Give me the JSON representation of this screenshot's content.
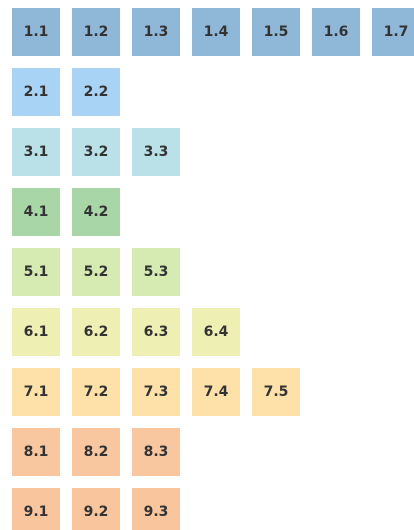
{
  "rows": [
    {
      "color": "#8fb7d8",
      "tiles": [
        "1.1",
        "1.2",
        "1.3",
        "1.4",
        "1.5",
        "1.6",
        "1.7"
      ]
    },
    {
      "color": "#a9d3f4",
      "tiles": [
        "2.1",
        "2.2"
      ]
    },
    {
      "color": "#bbe1e8",
      "tiles": [
        "3.1",
        "3.2",
        "3.3"
      ]
    },
    {
      "color": "#a9d6a7",
      "tiles": [
        "4.1",
        "4.2"
      ]
    },
    {
      "color": "#d6ebb2",
      "tiles": [
        "5.1",
        "5.2",
        "5.3"
      ]
    },
    {
      "color": "#eef0b3",
      "tiles": [
        "6.1",
        "6.2",
        "6.3",
        "6.4"
      ]
    },
    {
      "color": "#fde1a9",
      "tiles": [
        "7.1",
        "7.2",
        "7.3",
        "7.4",
        "7.5"
      ]
    },
    {
      "color": "#f8c7a0",
      "tiles": [
        "8.1",
        "8.2",
        "8.3"
      ]
    },
    {
      "color": "#f9c59d",
      "tiles": [
        "9.1",
        "9.2",
        "9.3"
      ]
    }
  ]
}
